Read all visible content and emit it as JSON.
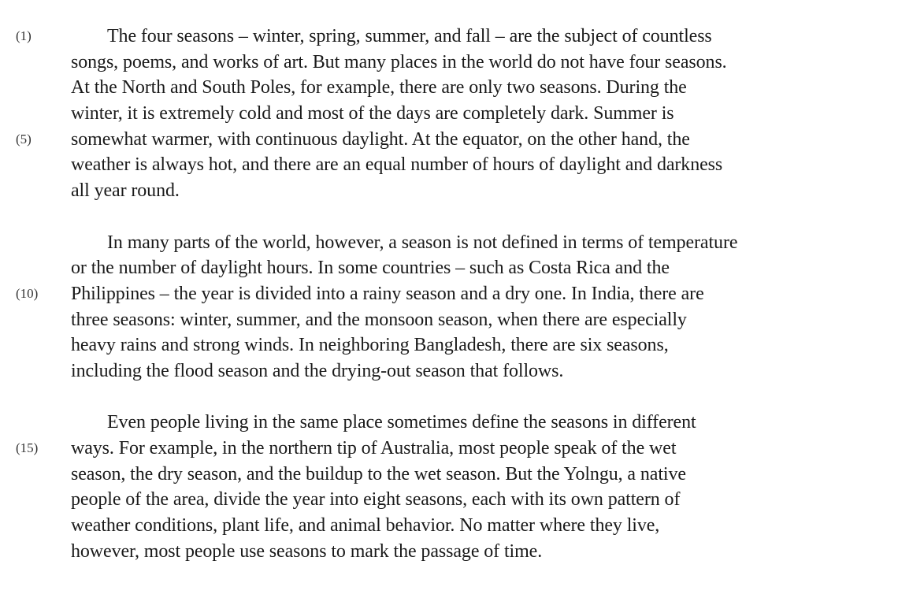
{
  "paragraphs": [
    {
      "lines": [
        "The four seasons – winter, spring, summer, and fall – are the subject of countless",
        "songs, poems, and works of art.  But many places in the world do not have four seasons.",
        "At the North and South Poles, for example, there are only two seasons.  During the",
        "winter, it is extremely cold and most of the days are completely dark.  Summer is",
        "somewhat warmer, with continuous daylight.  At the equator, on the other hand, the",
        "weather is always hot, and there are an equal number of hours of daylight and darkness",
        "all year round."
      ],
      "markers": [
        "(1)",
        "",
        "",
        "",
        "(5)",
        "",
        ""
      ]
    },
    {
      "lines": [
        "In many parts of the world, however, a season is not defined in terms of temperature",
        "or the number of daylight hours.  In some countries – such as Costa Rica and the",
        "Philippines – the year is divided into a rainy season and a dry one.  In India, there are",
        "three seasons:  winter, summer, and the monsoon season, when there are especially",
        "heavy rains and strong winds.  In neighboring Bangladesh, there are six seasons,",
        "including the flood season and the drying-out season that follows."
      ],
      "markers": [
        "",
        "",
        "(10)",
        "",
        "",
        ""
      ]
    },
    {
      "lines": [
        "Even people living in the same place sometimes define the seasons in different",
        "ways.  For example, in the northern tip of Australia, most people speak of the wet",
        "season, the dry season, and the buildup to the wet season.  But the Yolngu, a native",
        "people of the area, divide the year into eight seasons, each with its own pattern of",
        "weather conditions, plant life, and animal behavior.  No matter where they live,",
        "however, most people use seasons to mark the passage of time."
      ],
      "markers": [
        "",
        "(15)",
        "",
        "",
        "",
        ""
      ]
    }
  ]
}
